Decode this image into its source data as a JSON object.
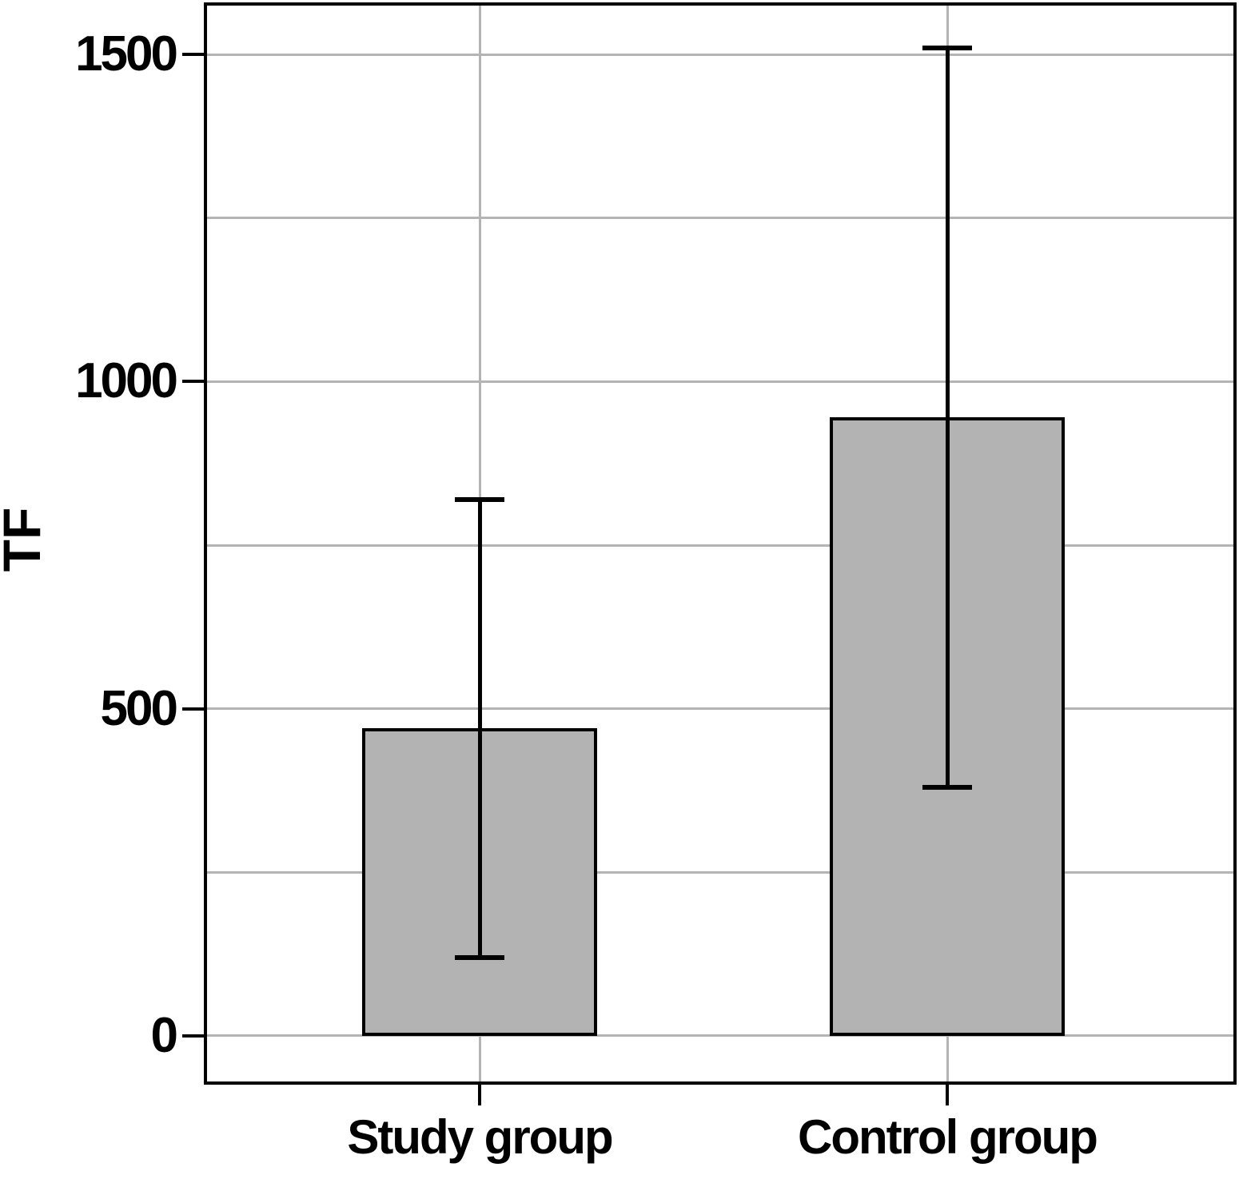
{
  "chart_data": {
    "type": "bar",
    "ylabel": "TF",
    "xlabel": "",
    "categories": [
      "Study group",
      "Control group"
    ],
    "values": [
      470,
      945
    ],
    "error_low": [
      120,
      380
    ],
    "error_high": [
      820,
      1510
    ],
    "yticks": [
      0,
      500,
      1000,
      1500
    ],
    "gridline_step": 250,
    "ylim": [
      -70,
      1575
    ],
    "grid": true,
    "legend_position": "none",
    "bar_fill": "#b3b3b3",
    "bar_border": "#000000",
    "gridline_color": "#b4b4b4",
    "axis_color": "#000000",
    "background": "#ffffff"
  }
}
